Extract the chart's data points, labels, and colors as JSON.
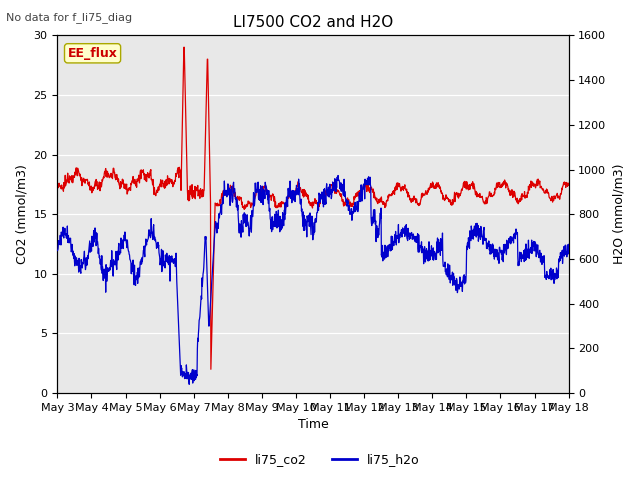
{
  "title": "LI7500 CO2 and H2O",
  "subtitle": "No data for f_li75_diag",
  "xlabel": "Time",
  "ylabel_left": "CO2 (mmol/m3)",
  "ylabel_right": "H2O (mmol/m3)",
  "ylim_left": [
    0,
    30
  ],
  "ylim_right": [
    0,
    1600
  ],
  "yticks_left": [
    0,
    5,
    10,
    15,
    20,
    25,
    30
  ],
  "yticks_right": [
    0,
    200,
    400,
    600,
    800,
    1000,
    1200,
    1400,
    1600
  ],
  "xtick_labels": [
    "May 3",
    "May 4",
    "May 5",
    "May 6",
    "May 7",
    "May 8",
    "May 9",
    "May 10",
    "May 11",
    "May 12",
    "May 13",
    "May 14",
    "May 15",
    "May 16",
    "May 17",
    "May 18"
  ],
  "bg_color": "#e8e8e8",
  "fig_bg_color": "#ffffff",
  "co2_color": "#dd0000",
  "h2o_color": "#0000cc",
  "grid_color": "#ffffff",
  "annotation_box_label": "EE_flux",
  "annotation_box_color": "#ffffcc",
  "annotation_box_edge": "#aaa800",
  "legend_co2_label": "li75_co2",
  "legend_h2o_label": "li75_h2o",
  "title_fontsize": 11,
  "subtitle_fontsize": 8,
  "axis_fontsize": 9,
  "tick_fontsize": 8
}
